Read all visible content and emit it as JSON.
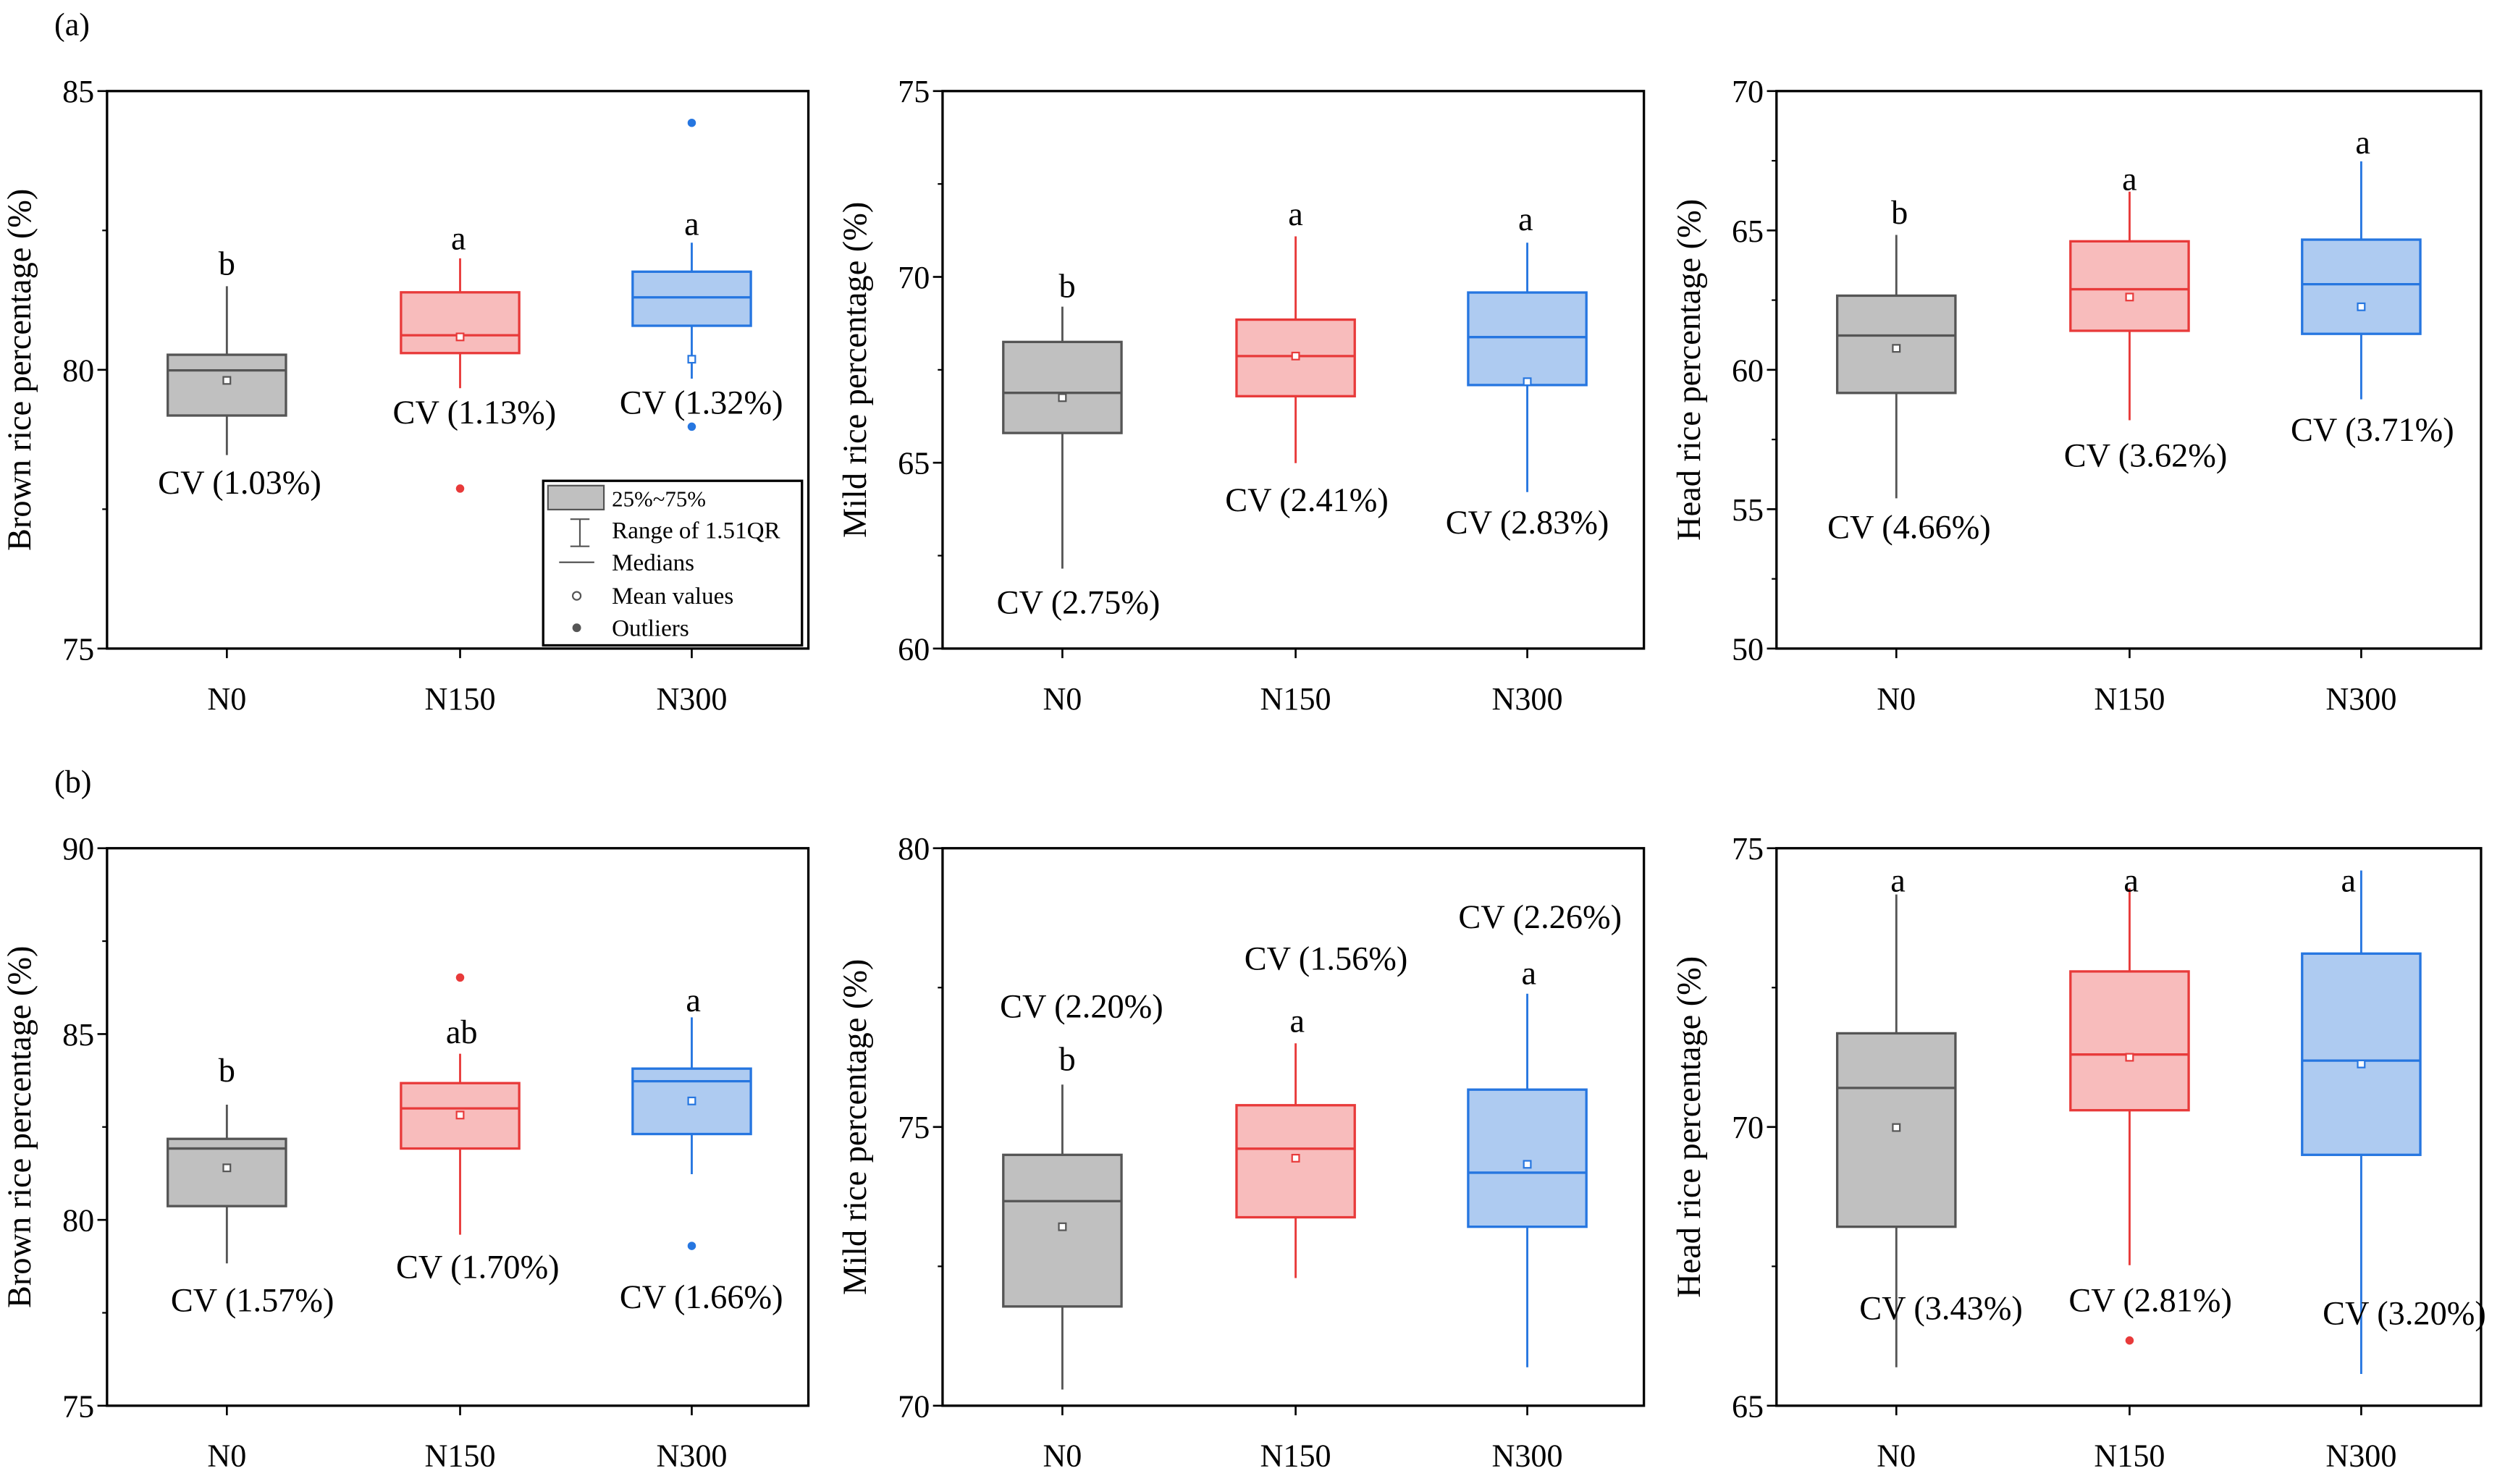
{
  "row_labels": [
    "(a)",
    "(b)"
  ],
  "legend": {
    "box": "25%~75%",
    "range": "Range of 1.51QR",
    "median": "Medians",
    "mean": "Mean values",
    "outliers": "Outliers"
  },
  "colors": {
    "N0": {
      "fill": "#c0c0c0",
      "stroke": "#555555"
    },
    "N150": {
      "fill": "#f8bcbc",
      "stroke": "#e83a3a"
    },
    "N300": {
      "fill": "#aecbf1",
      "stroke": "#2676e0"
    }
  },
  "chart_data": [
    {
      "type": "box",
      "row": "(a)",
      "ylabel": "Brown rice percentage (%)",
      "ylim": [
        75,
        85
      ],
      "yticks": [
        75,
        80,
        85
      ],
      "categories": [
        "N0",
        "N150",
        "N300"
      ],
      "groups": [
        {
          "name": "N0",
          "whisker_low": 78.47,
          "q1": 79.18,
          "median": 79.99,
          "q3": 80.27,
          "whisker_high": 81.5,
          "mean": 79.81,
          "outliers": [],
          "letter": "b",
          "cv": "CV (1.03%)"
        },
        {
          "name": "N150",
          "whisker_low": 79.67,
          "q1": 80.3,
          "median": 80.62,
          "q3": 81.39,
          "whisker_high": 82.0,
          "mean": 80.59,
          "outliers": [
            77.87
          ],
          "letter": "a",
          "cv": "CV (1.13%)"
        },
        {
          "name": "N300",
          "whisker_low": 79.84,
          "q1": 80.79,
          "median": 81.3,
          "q3": 81.76,
          "whisker_high": 82.28,
          "mean": 80.19,
          "outliers": [
            84.43,
            78.98
          ],
          "letter": "a",
          "cv": "CV (1.32%)"
        }
      ]
    },
    {
      "type": "box",
      "row": "(a)",
      "ylabel": "Mild rice percentage (%)",
      "ylim": [
        60,
        75
      ],
      "yticks": [
        60,
        65,
        70,
        75
      ],
      "categories": [
        "N0",
        "N150",
        "N300"
      ],
      "groups": [
        {
          "name": "N0",
          "whisker_low": 62.15,
          "q1": 65.8,
          "median": 66.88,
          "q3": 68.25,
          "whisker_high": 69.2,
          "mean": 66.75,
          "outliers": [],
          "letter": "b",
          "cv": "CV (2.75%)"
        },
        {
          "name": "N150",
          "whisker_low": 64.99,
          "q1": 66.79,
          "median": 67.87,
          "q3": 68.85,
          "whisker_high": 71.09,
          "mean": 67.87,
          "outliers": [],
          "letter": "a",
          "cv": "CV (2.41%)"
        },
        {
          "name": "N300",
          "whisker_low": 64.21,
          "q1": 67.09,
          "median": 68.38,
          "q3": 69.58,
          "whisker_high": 70.92,
          "mean": 67.18,
          "outliers": [],
          "letter": "a",
          "cv": "CV (2.83%)"
        }
      ]
    },
    {
      "type": "box",
      "row": "(a)",
      "ylabel": "Head rice percentage (%)",
      "ylim": [
        50,
        70
      ],
      "yticks": [
        50,
        55,
        60,
        65,
        70
      ],
      "categories": [
        "N0",
        "N150",
        "N300"
      ],
      "groups": [
        {
          "name": "N0",
          "whisker_low": 55.39,
          "q1": 59.17,
          "median": 61.23,
          "q3": 62.66,
          "whisker_high": 64.84,
          "mean": 60.77,
          "outliers": [],
          "letter": "b",
          "cv": "CV (4.66%)"
        },
        {
          "name": "N150",
          "whisker_low": 58.19,
          "q1": 61.4,
          "median": 62.89,
          "q3": 64.61,
          "whisker_high": 66.39,
          "mean": 62.61,
          "outliers": [],
          "letter": "a",
          "cv": "CV (3.62%)"
        },
        {
          "name": "N300",
          "whisker_low": 58.94,
          "q1": 61.29,
          "median": 63.07,
          "q3": 64.67,
          "whisker_high": 67.48,
          "mean": 62.26,
          "outliers": [],
          "letter": "a",
          "cv": "CV (3.71%)"
        }
      ]
    },
    {
      "type": "box",
      "row": "(b)",
      "ylabel": "Brown rice percentage (%)",
      "ylim": [
        75,
        90
      ],
      "yticks": [
        75,
        80,
        85,
        90
      ],
      "categories": [
        "N0",
        "N150",
        "N300"
      ],
      "groups": [
        {
          "name": "N0",
          "whisker_low": 78.83,
          "q1": 80.37,
          "median": 81.92,
          "q3": 82.18,
          "whisker_high": 83.1,
          "mean": 81.4,
          "outliers": [],
          "letter": "b",
          "cv": "CV (1.57%)"
        },
        {
          "name": "N150",
          "whisker_low": 79.6,
          "q1": 81.92,
          "median": 83.0,
          "q3": 83.68,
          "whisker_high": 84.47,
          "mean": 82.82,
          "outliers": [
            86.52
          ],
          "letter": "ab",
          "cv": "CV (1.70%)"
        },
        {
          "name": "N300",
          "whisker_low": 81.23,
          "q1": 82.31,
          "median": 83.73,
          "q3": 84.07,
          "whisker_high": 85.45,
          "mean": 83.2,
          "outliers": [
            79.3
          ],
          "letter": "a",
          "cv": "CV (1.66%)"
        }
      ]
    },
    {
      "type": "box",
      "row": "(b)",
      "ylabel": "Mild rice percentage (%)",
      "ylim": [
        70,
        80
      ],
      "yticks": [
        70,
        75,
        80
      ],
      "categories": [
        "N0",
        "N150",
        "N300"
      ],
      "groups": [
        {
          "name": "N0",
          "whisker_low": 70.29,
          "q1": 71.78,
          "median": 73.67,
          "q3": 74.5,
          "whisker_high": 75.76,
          "mean": 73.21,
          "outliers": [],
          "letter": "b",
          "cv": "CV (2.20%)"
        },
        {
          "name": "N150",
          "whisker_low": 72.29,
          "q1": 73.38,
          "median": 74.61,
          "q3": 75.39,
          "whisker_high": 76.5,
          "mean": 74.44,
          "outliers": [],
          "letter": "a",
          "cv": "CV (1.56%)"
        },
        {
          "name": "N300",
          "whisker_low": 70.69,
          "q1": 73.21,
          "median": 74.18,
          "q3": 75.67,
          "whisker_high": 77.39,
          "mean": 74.33,
          "outliers": [],
          "letter": "a",
          "cv": "CV (2.26%)"
        }
      ]
    },
    {
      "type": "box",
      "row": "(b)",
      "ylabel": "Head rice percentage (%)",
      "ylim": [
        65,
        75
      ],
      "yticks": [
        65,
        70,
        75
      ],
      "categories": [
        "N0",
        "N150",
        "N300"
      ],
      "groups": [
        {
          "name": "N0",
          "whisker_low": 65.69,
          "q1": 68.21,
          "median": 70.7,
          "q3": 71.68,
          "whisker_high": 74.17,
          "mean": 69.99,
          "outliers": [],
          "letter": "a",
          "cv": "CV (3.43%)"
        },
        {
          "name": "N150",
          "whisker_low": 67.52,
          "q1": 70.3,
          "median": 71.3,
          "q3": 72.79,
          "whisker_high": 74.28,
          "mean": 71.25,
          "outliers": [
            66.17
          ],
          "letter": "a",
          "cv": "CV (2.81%)"
        },
        {
          "name": "N300",
          "whisker_low": 65.57,
          "q1": 69.5,
          "median": 71.19,
          "q3": 73.11,
          "whisker_high": 74.6,
          "mean": 71.13,
          "outliers": [],
          "letter": "a",
          "cv": "CV (3.20%)"
        }
      ]
    }
  ]
}
